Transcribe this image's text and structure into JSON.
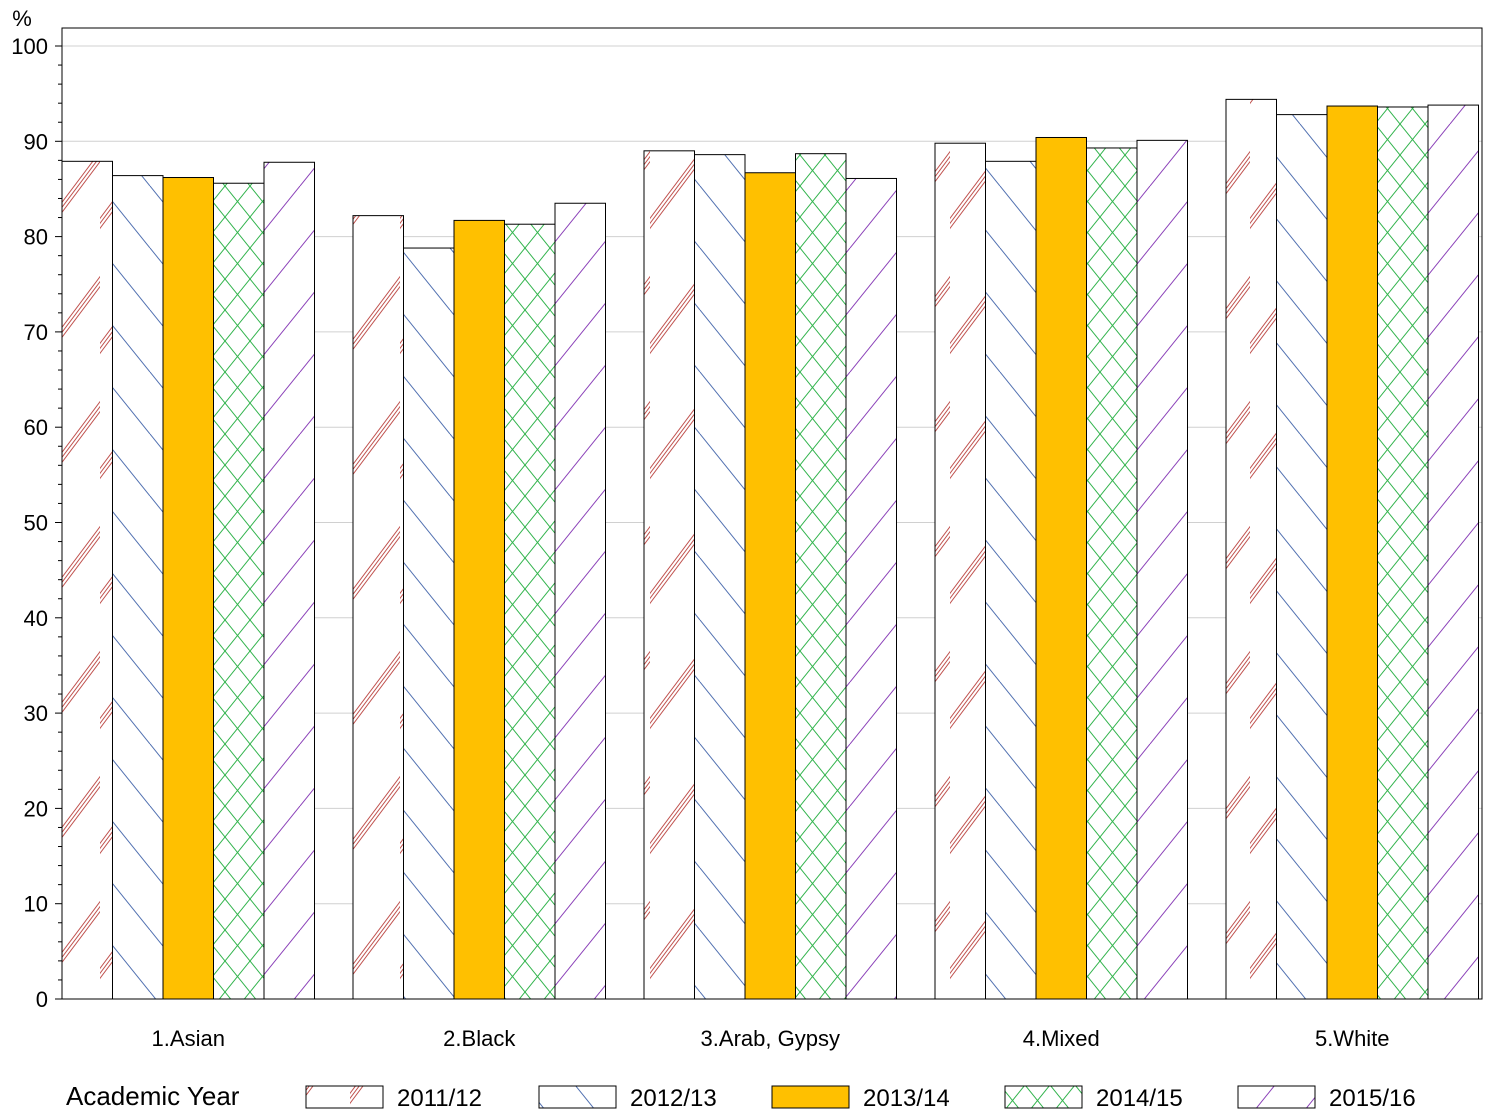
{
  "chart_data": {
    "type": "bar",
    "ylabel": "%",
    "ylim": [
      0,
      100
    ],
    "yticks": [
      0,
      10,
      20,
      30,
      40,
      50,
      60,
      70,
      80,
      90,
      100
    ],
    "grid": true,
    "legend_position": "bottom",
    "legend_title": "Academic Year",
    "categories": [
      "1.Asian",
      "2.Black",
      "3.Arab, Gypsy",
      "4.Mixed",
      "5.White"
    ],
    "series": [
      {
        "name": "2011/12",
        "values": [
          87.9,
          82.2,
          89.0,
          89.8,
          94.4
        ],
        "color": "#c0504d",
        "pattern": "triple-diagonal-up"
      },
      {
        "name": "2012/13",
        "values": [
          86.4,
          78.8,
          88.6,
          87.9,
          92.8
        ],
        "color": "#4f6fb0",
        "pattern": "diagonal-down"
      },
      {
        "name": "2013/14",
        "values": [
          86.2,
          81.7,
          86.7,
          90.4,
          93.7
        ],
        "color": "#ffc000",
        "pattern": "solid"
      },
      {
        "name": "2014/15",
        "values": [
          85.6,
          81.3,
          88.7,
          89.3,
          93.6
        ],
        "color": "#2fb34a",
        "pattern": "crosshatch"
      },
      {
        "name": "2015/16",
        "values": [
          87.8,
          83.5,
          86.1,
          90.1,
          93.8
        ],
        "color": "#8a3fb8",
        "pattern": "diagonal-up"
      }
    ]
  }
}
